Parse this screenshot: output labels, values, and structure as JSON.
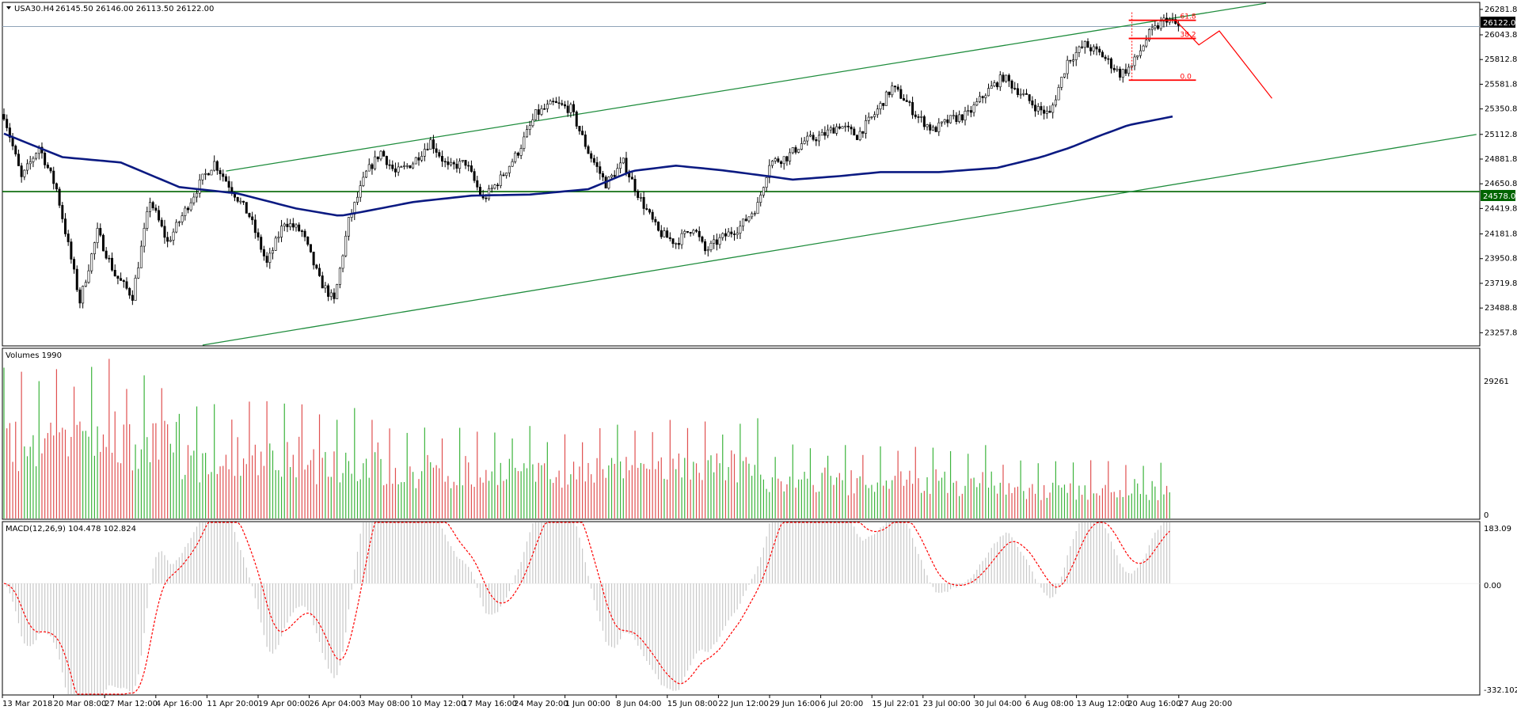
{
  "header": {
    "symbol": "USA30.H4",
    "ohlc": "26145.50 26146.00 26113.50 26122.00",
    "collapse_icon": "triangle-down-icon"
  },
  "colors": {
    "background": "#ffffff",
    "frame": "#000000",
    "bull_candle": "#000000",
    "bear_candle": "#000000",
    "moving_average": "#0b1a82",
    "channel": "#1e8c3c",
    "support_line": "#006400",
    "price_line": "#8fa3b8",
    "fib": "#ff0000",
    "forecast": "#ff0000",
    "volume_up": "#3cb43c",
    "volume_down": "#e05050",
    "macd_hist": "#c8c8c8",
    "macd_signal": "#ff0000"
  },
  "chart_data": [
    {
      "type": "candlestick",
      "title": "USA30.H4",
      "current_price": 26122.0,
      "current_price_label": "26122.00",
      "support_level": 24578.01,
      "support_label": "24578.01",
      "ylim": [
        23142.0,
        26340.0
      ],
      "y_ticks": [
        "26281.80",
        "26043.80",
        "25812.80",
        "25581.80",
        "25350.80",
        "25112.80",
        "24881.80",
        "24650.80",
        "24419.80",
        "24181.80",
        "23950.80",
        "23719.80",
        "23488.80",
        "23257.80"
      ],
      "x_ticks": [
        "13 Mar 2018",
        "20 Mar 08:00",
        "27 Mar 12:00",
        "4 Apr 16:00",
        "11 Apr 20:00",
        "19 Apr 00:00",
        "26 Apr 04:00",
        "3 May 08:00",
        "10 May 12:00",
        "17 May 16:00",
        "24 May 20:00",
        "1 Jun 00:00",
        "8 Jun 04:00",
        "15 Jun 08:00",
        "22 Jun 12:00",
        "29 Jun 16:00",
        "6 Jul 20:00",
        "15 Jul 22:01",
        "23 Jul 00:00",
        "30 Jul 04:00",
        "6 Aug 08:00",
        "13 Aug 12:00",
        "20 Aug 16:00",
        "27 Aug 20:00"
      ],
      "close_path": [
        [
          0,
          25300
        ],
        [
          6,
          24700
        ],
        [
          12,
          25000
        ],
        [
          18,
          24600
        ],
        [
          26,
          23550
        ],
        [
          32,
          24200
        ],
        [
          38,
          23800
        ],
        [
          44,
          23600
        ],
        [
          50,
          24500
        ],
        [
          56,
          24100
        ],
        [
          62,
          24400
        ],
        [
          68,
          24700
        ],
        [
          72,
          24850
        ],
        [
          78,
          24600
        ],
        [
          84,
          24350
        ],
        [
          90,
          23900
        ],
        [
          96,
          24300
        ],
        [
          102,
          24200
        ],
        [
          108,
          23750
        ],
        [
          113,
          23550
        ],
        [
          118,
          24300
        ],
        [
          124,
          24750
        ],
        [
          129,
          24950
        ],
        [
          134,
          24750
        ],
        [
          140,
          24850
        ],
        [
          146,
          25050
        ],
        [
          152,
          24800
        ],
        [
          158,
          24850
        ],
        [
          164,
          24500
        ],
        [
          170,
          24700
        ],
        [
          176,
          24950
        ],
        [
          182,
          25300
        ],
        [
          188,
          25400
        ],
        [
          194,
          25350
        ],
        [
          200,
          24950
        ],
        [
          206,
          24650
        ],
        [
          212,
          24850
        ],
        [
          218,
          24500
        ],
        [
          224,
          24200
        ],
        [
          230,
          24100
        ],
        [
          236,
          24250
        ],
        [
          240,
          24020
        ],
        [
          246,
          24150
        ],
        [
          252,
          24250
        ],
        [
          258,
          24450
        ],
        [
          262,
          24850
        ],
        [
          268,
          24900
        ],
        [
          274,
          25050
        ],
        [
          280,
          25100
        ],
        [
          286,
          25200
        ],
        [
          292,
          25100
        ],
        [
          298,
          25300
        ],
        [
          304,
          25550
        ],
        [
          308,
          25450
        ],
        [
          312,
          25300
        ],
        [
          318,
          25150
        ],
        [
          324,
          25250
        ],
        [
          330,
          25300
        ],
        [
          336,
          25500
        ],
        [
          342,
          25650
        ],
        [
          348,
          25500
        ],
        [
          354,
          25350
        ],
        [
          358,
          25300
        ],
        [
          364,
          25800
        ],
        [
          370,
          25950
        ],
        [
          376,
          25850
        ],
        [
          382,
          25680
        ],
        [
          386,
          25750
        ],
        [
          392,
          26050
        ],
        [
          398,
          26200
        ],
        [
          402,
          26122
        ]
      ],
      "ma_path": [
        [
          0,
          25120
        ],
        [
          20,
          24900
        ],
        [
          40,
          24850
        ],
        [
          60,
          24620
        ],
        [
          80,
          24560
        ],
        [
          100,
          24420
        ],
        [
          115,
          24350
        ],
        [
          125,
          24400
        ],
        [
          140,
          24480
        ],
        [
          160,
          24540
        ],
        [
          180,
          24550
        ],
        [
          200,
          24600
        ],
        [
          215,
          24770
        ],
        [
          230,
          24820
        ],
        [
          245,
          24780
        ],
        [
          262,
          24720
        ],
        [
          270,
          24690
        ],
        [
          285,
          24720
        ],
        [
          300,
          24760
        ],
        [
          320,
          24760
        ],
        [
          340,
          24800
        ],
        [
          355,
          24900
        ],
        [
          365,
          24990
        ],
        [
          375,
          25100
        ],
        [
          385,
          25200
        ],
        [
          400,
          25280
        ]
      ],
      "channel_upper": [
        [
          76,
          24770
        ],
        [
          432,
          26340
        ]
      ],
      "channel_lower": [
        [
          68,
          23142
        ],
        [
          504,
          25112
        ]
      ],
      "fibonacci": {
        "levels": [
          {
            "label": "61.8",
            "value": 26180
          },
          {
            "label": "38.2",
            "value": 26010
          },
          {
            "label": "0.0",
            "value": 25620
          }
        ],
        "bars_from": 385,
        "bars_to": 408
      },
      "forecast": [
        [
          401,
          26180
        ],
        [
          409,
          25950
        ],
        [
          416,
          26080
        ],
        [
          434,
          25450
        ]
      ]
    },
    {
      "type": "bar",
      "title": "Volumes 1990",
      "ylim": [
        0,
        29261
      ],
      "y_ticks": [
        "29261",
        "0"
      ]
    },
    {
      "type": "line",
      "title": "MACD(12,26,9) 104.478 102.824",
      "ylim": [
        -332.102,
        183.09
      ],
      "y_ticks": [
        "183.09",
        "0.00",
        "-332.102"
      ]
    }
  ]
}
